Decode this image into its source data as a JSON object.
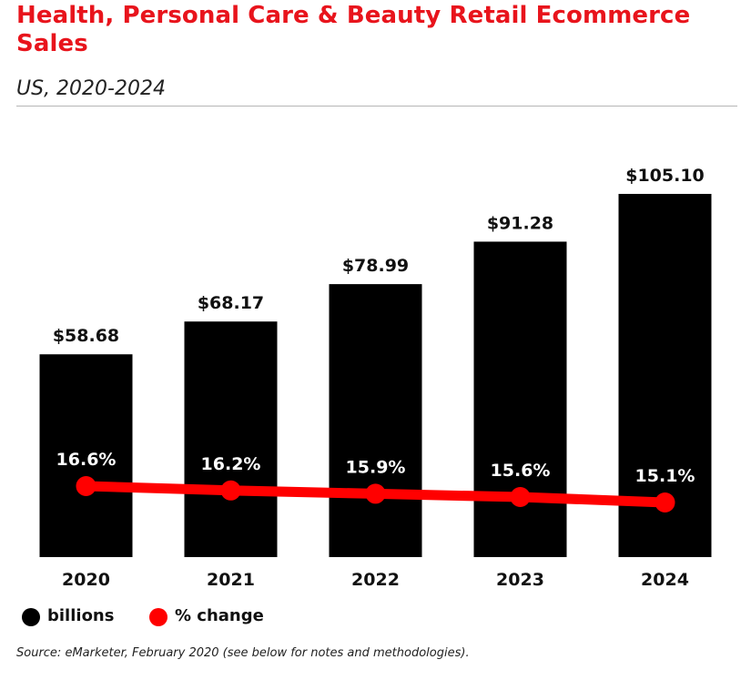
{
  "header": {
    "title": "Health, Personal Care & Beauty Retail Ecommerce Sales",
    "subtitle": "US, 2020-2024"
  },
  "chart_data": {
    "type": "bar",
    "title": "Health, Personal Care & Beauty Retail Ecommerce Sales",
    "subtitle": "US, 2020-2024",
    "categories": [
      "2020",
      "2021",
      "2022",
      "2023",
      "2024"
    ],
    "series": [
      {
        "name": "billions",
        "type": "bar",
        "values": [
          58.68,
          68.17,
          78.99,
          91.28,
          105.1
        ],
        "labels": [
          "$58.68",
          "$68.17",
          "$78.99",
          "$91.28",
          "$105.10"
        ],
        "color": "#000000"
      },
      {
        "name": "% change",
        "type": "line",
        "values": [
          16.6,
          16.2,
          15.9,
          15.6,
          15.1
        ],
        "labels": [
          "16.6%",
          "16.2%",
          "15.9%",
          "15.6%",
          "15.1%"
        ],
        "color": "#ff0000"
      }
    ],
    "xlabel": "",
    "ylabel": "",
    "grid": false,
    "legend": "bottom-left"
  },
  "legend": {
    "items": [
      {
        "label": "billions",
        "color": "#000000"
      },
      {
        "label": "% change",
        "color": "#ff0000"
      }
    ]
  },
  "footer": {
    "source": "Source: eMarketer, February 2020 (see below for notes and methodologies)."
  }
}
